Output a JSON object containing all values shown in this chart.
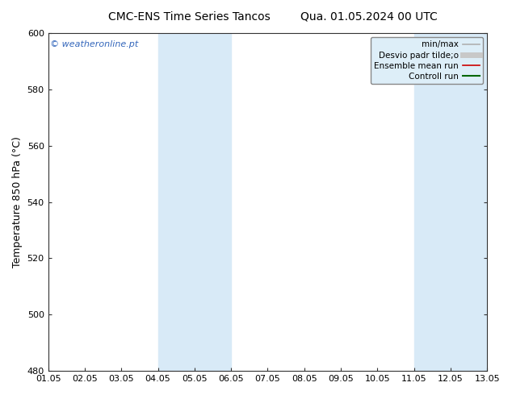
{
  "title_left": "CMC-ENS Time Series Tancos",
  "title_right": "Qua. 01.05.2024 00 UTC",
  "ylabel": "Temperature 850 hPa (°C)",
  "watermark": "© weatheronline.pt",
  "ylim": [
    480,
    600
  ],
  "yticks": [
    480,
    500,
    520,
    540,
    560,
    580,
    600
  ],
  "xlim": [
    0,
    12
  ],
  "xtick_labels": [
    "01.05",
    "02.05",
    "03.05",
    "04.05",
    "05.05",
    "06.05",
    "07.05",
    "08.05",
    "09.05",
    "10.05",
    "11.05",
    "12.05",
    "13.05"
  ],
  "xtick_positions": [
    0,
    1,
    2,
    3,
    4,
    5,
    6,
    7,
    8,
    9,
    10,
    11,
    12
  ],
  "shaded_bands": [
    {
      "x_start": 3,
      "x_end": 5,
      "color": "#d8eaf7"
    },
    {
      "x_start": 10,
      "x_end": 12,
      "color": "#d8eaf7"
    }
  ],
  "legend_items": [
    {
      "label": "min/max",
      "color": "#b0b0b0",
      "linestyle": "-",
      "linewidth": 1.2
    },
    {
      "label": "Desvio padr tilde;o",
      "color": "#c8c8c8",
      "linestyle": "-",
      "linewidth": 5
    },
    {
      "label": "Ensemble mean run",
      "color": "#cc0000",
      "linestyle": "-",
      "linewidth": 1.2
    },
    {
      "label": "Controll run",
      "color": "#006600",
      "linestyle": "-",
      "linewidth": 1.5
    }
  ],
  "bg_color": "#ffffff",
  "plot_bg_color": "#ffffff",
  "legend_bg_color": "#ddeef8",
  "title_fontsize": 10,
  "axis_label_fontsize": 9,
  "tick_fontsize": 8,
  "watermark_color": "#3366bb",
  "watermark_fontsize": 8,
  "legend_fontsize": 7.5
}
